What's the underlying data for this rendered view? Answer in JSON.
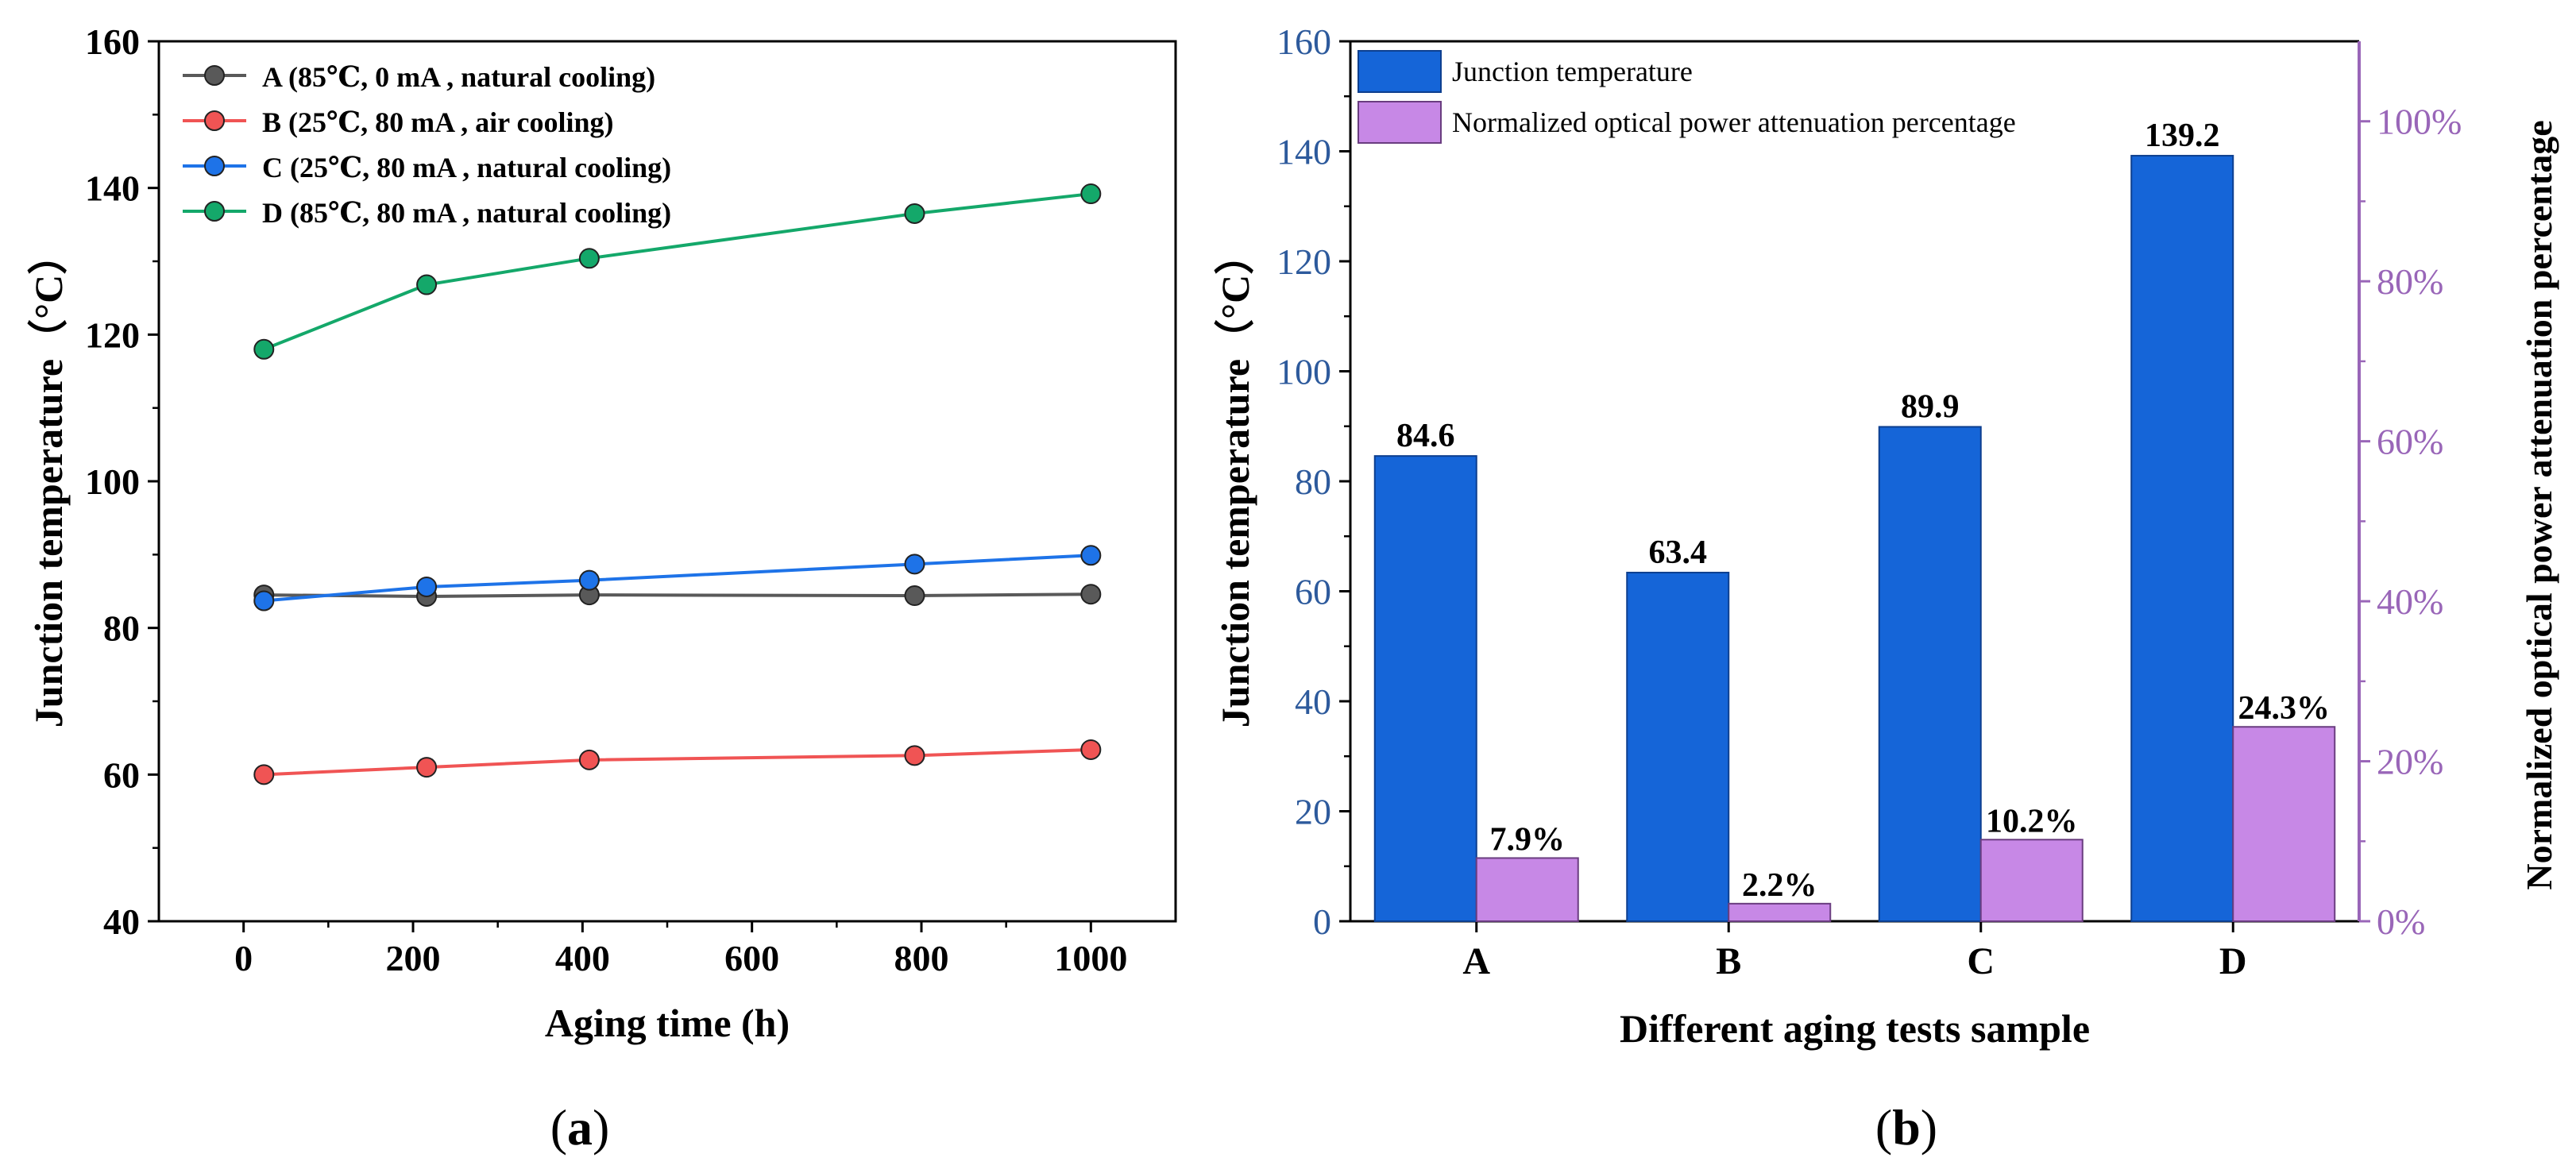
{
  "colors": {
    "axis": "#000000",
    "right_axis_b": "#9966b8",
    "left_ticks_b": "#2d5a9c",
    "series_A": "#595959",
    "series_B": "#f05454",
    "series_C": "#1e73e8",
    "series_D": "#14a86a",
    "bar_junction": "#1565d8",
    "bar_junction_edge": "#0d3f8f",
    "bar_attenuation": "#c788e6",
    "bar_attenuation_edge": "#6a3d80"
  },
  "panel_a": {
    "caption_open": "(",
    "caption_letter": "a",
    "caption_close": ")"
  },
  "panel_b": {
    "caption_open": "(",
    "caption_letter": "b",
    "caption_close": ")"
  },
  "chart_data": [
    {
      "id": "a",
      "type": "line",
      "xlabel": "Aging time (h)",
      "ylabel": "Junction temperature（°C）",
      "xlim": [
        -100,
        1100
      ],
      "ylim": [
        40,
        160
      ],
      "xticks": [
        0,
        200,
        400,
        600,
        800,
        1000
      ],
      "yticks": [
        40,
        60,
        80,
        100,
        120,
        140,
        160
      ],
      "legend_position": "top-left",
      "x": [
        24,
        216,
        408,
        792,
        1000
      ],
      "series": [
        {
          "key": "A",
          "name": "A (85℃, 0 mA , natural cooling)",
          "values": [
            84.5,
            84.3,
            84.5,
            84.4,
            84.6
          ]
        },
        {
          "key": "B",
          "name": "B (25℃, 80 mA , air cooling)",
          "values": [
            60.0,
            61.0,
            62.0,
            62.6,
            63.4
          ]
        },
        {
          "key": "C",
          "name": "C (25℃, 80 mA , natural cooling)",
          "values": [
            83.7,
            85.6,
            86.5,
            88.7,
            89.9
          ]
        },
        {
          "key": "D",
          "name": "D (85℃, 80 mA , natural cooling)",
          "values": [
            118.0,
            126.8,
            130.4,
            136.5,
            139.2
          ]
        }
      ]
    },
    {
      "id": "b",
      "type": "bar",
      "xlabel": "Different aging tests sample",
      "ylabel": "Junction temperature（°C）",
      "y2label": "Normalized optical power attenuation percentage",
      "categories": [
        "A",
        "B",
        "C",
        "D"
      ],
      "ylim": [
        0,
        160
      ],
      "y2lim": [
        0,
        110
      ],
      "yticks": [
        0,
        20,
        40,
        60,
        80,
        100,
        120,
        140,
        160
      ],
      "y2ticks": [
        0,
        20,
        40,
        60,
        80,
        100
      ],
      "y2tick_labels": [
        "0%",
        "20%",
        "40%",
        "60%",
        "80%",
        "100%"
      ],
      "legend_position": "top-left",
      "series": [
        {
          "key": "junction",
          "name": "Junction temperature",
          "axis": "left",
          "values": [
            84.6,
            63.4,
            89.9,
            139.2
          ],
          "labels": [
            "84.6",
            "63.4",
            "89.9",
            "139.2"
          ]
        },
        {
          "key": "attenuation",
          "name": "Normalized optical power attenuation percentage",
          "axis": "right",
          "values": [
            7.9,
            2.2,
            10.2,
            24.3
          ],
          "labels": [
            "7.9%",
            "2.2%",
            "10.2%",
            "24.3%"
          ]
        }
      ]
    }
  ]
}
